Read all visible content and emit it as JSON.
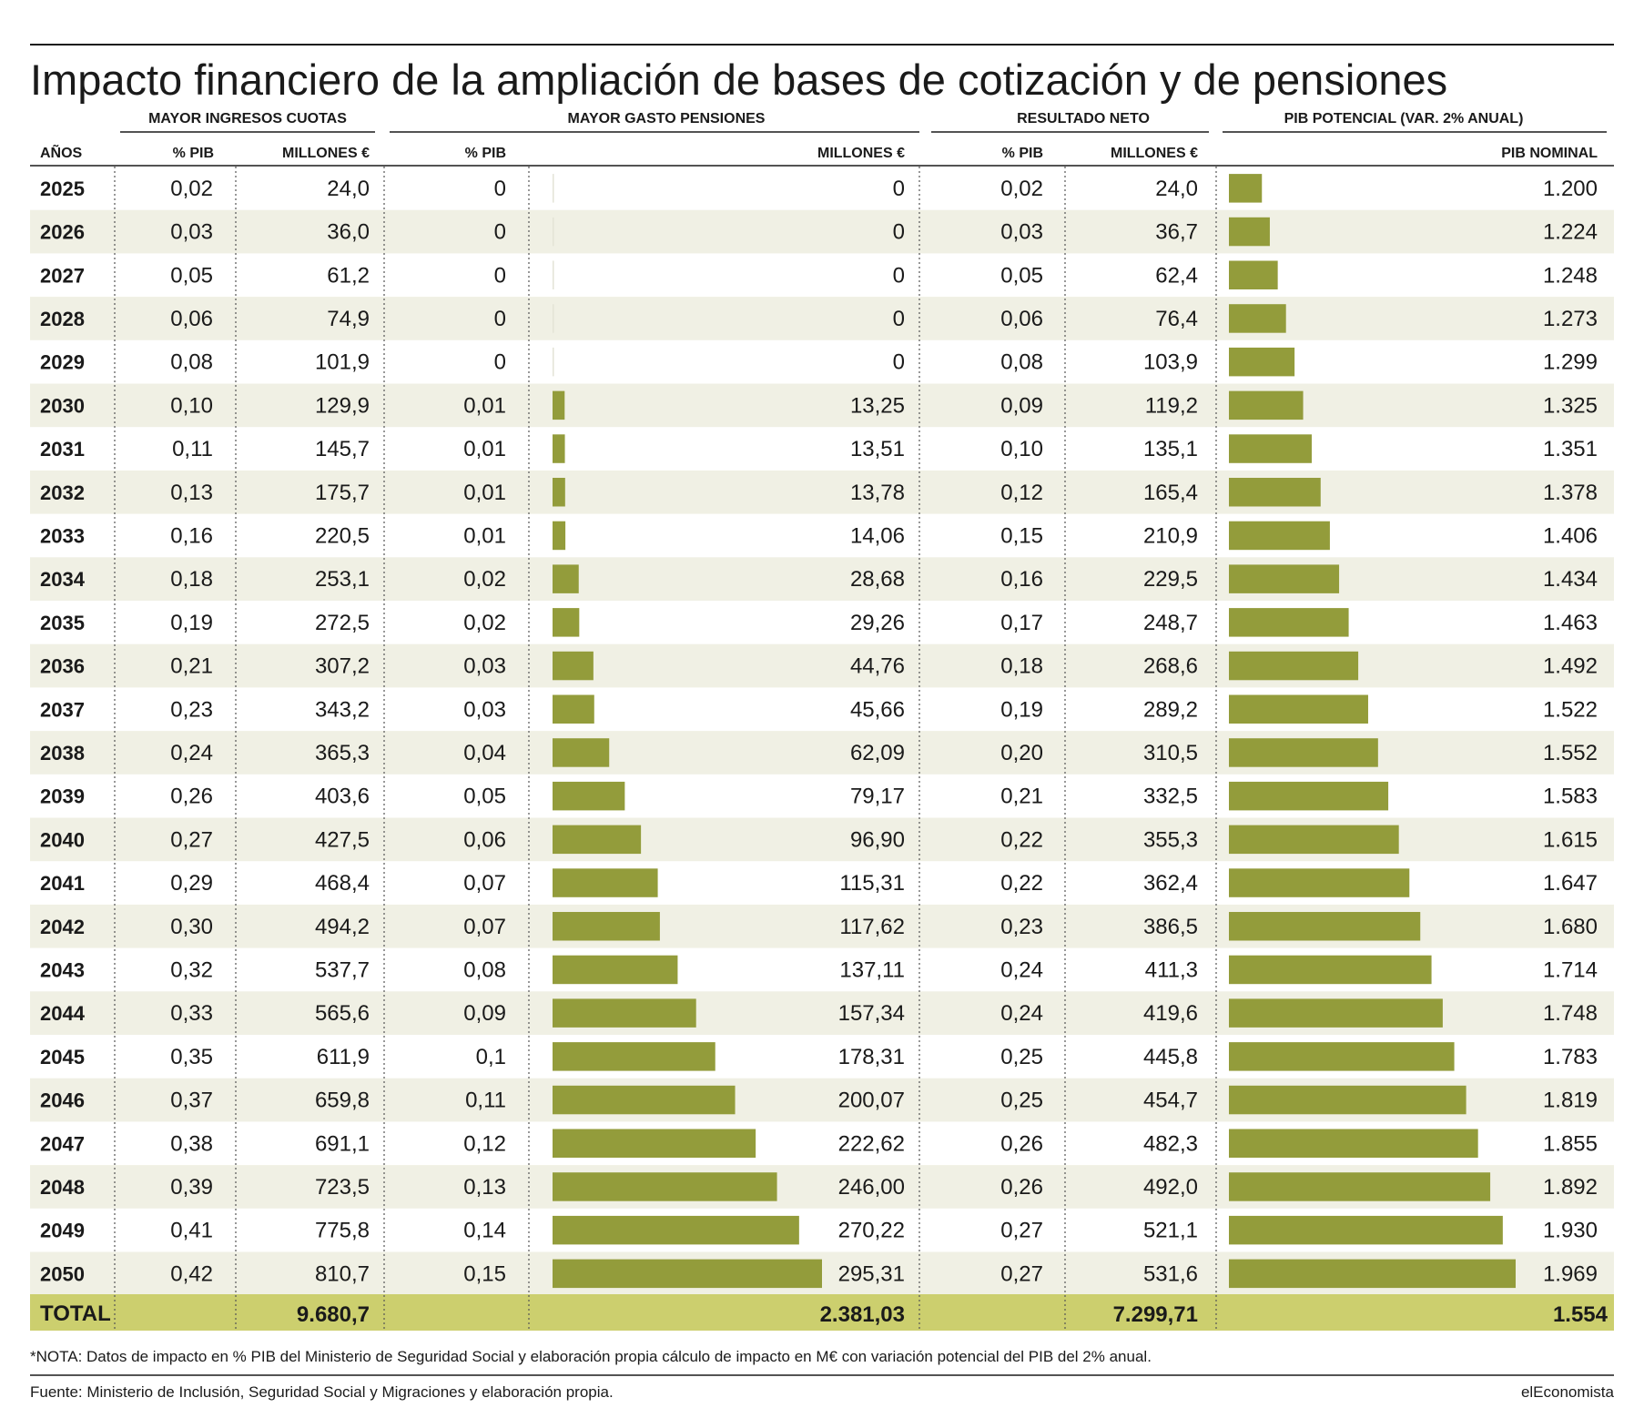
{
  "title": "Impacto financiero de la ampliación de bases de cotización y de pensiones",
  "groups": {
    "ingresos": "MAYOR INGRESOS CUOTAS",
    "gasto": "MAYOR GASTO PENSIONES",
    "neto": "RESULTADO NETO",
    "pib": "PIB POTENCIAL (VAR. 2% ANUAL)"
  },
  "headers": {
    "anos": "AÑOS",
    "ing_pib": "% PIB",
    "ing_mill": "MILLONES €",
    "gas_pib": "% PIB",
    "gas_mill": "MILLONES €",
    "net_pib": "% PIB",
    "net_mill": "MILLONES €",
    "pib_nom": "PIB NOMINAL"
  },
  "total": {
    "label": "TOTAL",
    "ing_mill": "9.680,7",
    "gas_mill": "2.381,03",
    "net_mill": "7.299,71",
    "pib_nom": "1.554"
  },
  "note": "*NOTA: Datos de impacto en % PIB del Ministerio de Seguridad Social y elaboración propia cálculo de impacto en M€ con variación potencial del PIB del 2% anual.",
  "source": "Fuente: Ministerio de Inclusión, Seguridad Social y Migraciones y elaboración propia.",
  "brand": "elEconomista",
  "colors": {
    "bar": "#939c3b",
    "total_bg": "#cccf6e",
    "stripe": "#f0f0e4"
  },
  "chart_data": {
    "type": "table",
    "columns": [
      "AÑOS",
      "% PIB",
      "MILLONES €",
      "% PIB",
      "MILLONES €",
      "% PIB",
      "MILLONES €",
      "PIB NOMINAL"
    ],
    "bar_columns": [
      "MAYOR GASTO PENSIONES · MILLONES €",
      "PIB NOMINAL"
    ],
    "rows": [
      [
        "2025",
        "0,02",
        "24,0",
        "0",
        "0",
        "0,02",
        "24,0",
        "1.200"
      ],
      [
        "2026",
        "0,03",
        "36,0",
        "0",
        "0",
        "0,03",
        "36,7",
        "1.224"
      ],
      [
        "2027",
        "0,05",
        "61,2",
        "0",
        "0",
        "0,05",
        "62,4",
        "1.248"
      ],
      [
        "2028",
        "0,06",
        "74,9",
        "0",
        "0",
        "0,06",
        "76,4",
        "1.273"
      ],
      [
        "2029",
        "0,08",
        "101,9",
        "0",
        "0",
        "0,08",
        "103,9",
        "1.299"
      ],
      [
        "2030",
        "0,10",
        "129,9",
        "0,01",
        "13,25",
        "0,09",
        "119,2",
        "1.325"
      ],
      [
        "2031",
        "0,11",
        "145,7",
        "0,01",
        "13,51",
        "0,10",
        "135,1",
        "1.351"
      ],
      [
        "2032",
        "0,13",
        "175,7",
        "0,01",
        "13,78",
        "0,12",
        "165,4",
        "1.378"
      ],
      [
        "2033",
        "0,16",
        "220,5",
        "0,01",
        "14,06",
        "0,15",
        "210,9",
        "1.406"
      ],
      [
        "2034",
        "0,18",
        "253,1",
        "0,02",
        "28,68",
        "0,16",
        "229,5",
        "1.434"
      ],
      [
        "2035",
        "0,19",
        "272,5",
        "0,02",
        "29,26",
        "0,17",
        "248,7",
        "1.463"
      ],
      [
        "2036",
        "0,21",
        "307,2",
        "0,03",
        "44,76",
        "0,18",
        "268,6",
        "1.492"
      ],
      [
        "2037",
        "0,23",
        "343,2",
        "0,03",
        "45,66",
        "0,19",
        "289,2",
        "1.522"
      ],
      [
        "2038",
        "0,24",
        "365,3",
        "0,04",
        "62,09",
        "0,20",
        "310,5",
        "1.552"
      ],
      [
        "2039",
        "0,26",
        "403,6",
        "0,05",
        "79,17",
        "0,21",
        "332,5",
        "1.583"
      ],
      [
        "2040",
        "0,27",
        "427,5",
        "0,06",
        "96,90",
        "0,22",
        "355,3",
        "1.615"
      ],
      [
        "2041",
        "0,29",
        "468,4",
        "0,07",
        "115,31",
        "0,22",
        "362,4",
        "1.647"
      ],
      [
        "2042",
        "0,30",
        "494,2",
        "0,07",
        "117,62",
        "0,23",
        "386,5",
        "1.680"
      ],
      [
        "2043",
        "0,32",
        "537,7",
        "0,08",
        "137,11",
        "0,24",
        "411,3",
        "1.714"
      ],
      [
        "2044",
        "0,33",
        "565,6",
        "0,09",
        "157,34",
        "0,24",
        "419,6",
        "1.748"
      ],
      [
        "2045",
        "0,35",
        "611,9",
        "0,1",
        "178,31",
        "0,25",
        "445,8",
        "1.783"
      ],
      [
        "2046",
        "0,37",
        "659,8",
        "0,11",
        "200,07",
        "0,25",
        "454,7",
        "1.819"
      ],
      [
        "2047",
        "0,38",
        "691,1",
        "0,12",
        "222,62",
        "0,26",
        "482,3",
        "1.855"
      ],
      [
        "2048",
        "0,39",
        "723,5",
        "0,13",
        "246,00",
        "0,26",
        "492,0",
        "1.892"
      ],
      [
        "2049",
        "0,41",
        "775,8",
        "0,14",
        "270,22",
        "0,27",
        "521,1",
        "1.930"
      ],
      [
        "2050",
        "0,42",
        "810,7",
        "0,15",
        "295,31",
        "0,27",
        "531,6",
        "1.969"
      ]
    ]
  }
}
